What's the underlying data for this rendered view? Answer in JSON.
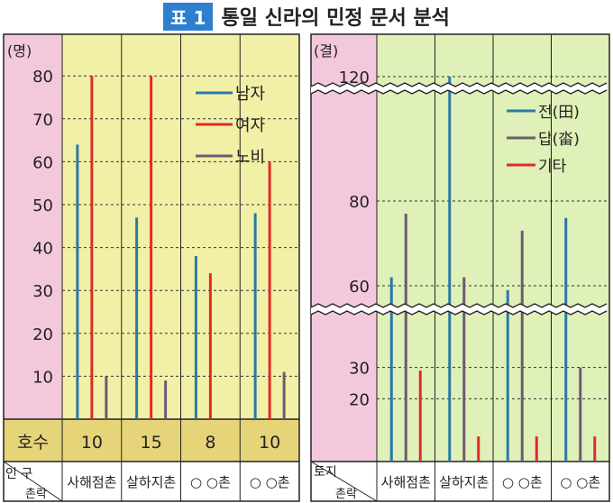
{
  "title": {
    "badge": "표 1",
    "text": "통일 신라의 민정 문서 분석"
  },
  "colors": {
    "blue": "#2a78a8",
    "red": "#e02a2a",
    "purple": "#6e5a72",
    "bgYellow": "#f1f0a6",
    "bgGreen": "#dff0b8",
    "bgPink": "#f3c8dd"
  },
  "chart_data": [
    {
      "type": "bar",
      "ylabel": "(명)",
      "yticks": [
        10,
        20,
        30,
        40,
        50,
        60,
        70,
        80
      ],
      "ylim": [
        0,
        85
      ],
      "categories": [
        "사해점촌",
        "살하지촌",
        "○ ○촌",
        "○ ○촌"
      ],
      "series": [
        {
          "name": "남자",
          "color": "#2a78a8",
          "values": [
            64,
            47,
            38,
            48
          ]
        },
        {
          "name": "여자",
          "color": "#e02a2a",
          "values": [
            80,
            80,
            34,
            60
          ]
        },
        {
          "name": "노비",
          "color": "#6e5a72",
          "values": [
            10,
            9,
            0,
            11
          ]
        }
      ],
      "legend": "top-right",
      "households_label": "호수",
      "households": [
        "10",
        "15",
        "8",
        "10"
      ],
      "corner_top": "인 구",
      "corner_bottom": "촌락"
    },
    {
      "type": "bar",
      "ylabel": "(결)",
      "yticks": [
        20,
        30,
        60,
        80,
        120
      ],
      "axis_breaks": [
        [
          40,
          60
        ],
        [
          90,
          120
        ]
      ],
      "categories": [
        "사해점촌",
        "살하지촌",
        "○ ○촌",
        "○ ○촌"
      ],
      "series": [
        {
          "name": "전(田)",
          "color": "#2a78a8",
          "values": [
            62,
            120,
            59,
            76
          ]
        },
        {
          "name": "답(畓)",
          "color": "#6e5a72",
          "values": [
            77,
            62,
            73,
            30
          ]
        },
        {
          "name": "기타",
          "color": "#e02a2a",
          "values": [
            29,
            8,
            8,
            8
          ]
        }
      ],
      "legend": "top-right",
      "corner_top": "토지",
      "corner_bottom": "촌락"
    }
  ]
}
